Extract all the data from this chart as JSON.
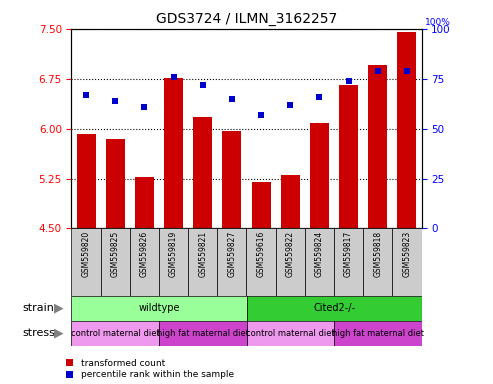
{
  "title": "GDS3724 / ILMN_3162257",
  "samples": [
    "GSM559820",
    "GSM559825",
    "GSM559826",
    "GSM559819",
    "GSM559821",
    "GSM559827",
    "GSM559616",
    "GSM559822",
    "GSM559824",
    "GSM559817",
    "GSM559818",
    "GSM559823"
  ],
  "bar_values": [
    5.92,
    5.85,
    5.28,
    6.76,
    6.18,
    5.97,
    5.2,
    5.3,
    6.08,
    6.65,
    6.95,
    7.45
  ],
  "percentile_values": [
    67,
    64,
    61,
    76,
    72,
    65,
    57,
    62,
    66,
    74,
    79,
    79
  ],
  "ylim_left": [
    4.5,
    7.5
  ],
  "ylim_right": [
    0,
    100
  ],
  "yticks_left": [
    4.5,
    5.25,
    6.0,
    6.75,
    7.5
  ],
  "yticks_right": [
    0,
    25,
    50,
    75,
    100
  ],
  "bar_color": "#cc0000",
  "dot_color": "#0000cc",
  "dot_size": 18,
  "strain_groups": [
    {
      "label": "wildtype",
      "start": 0,
      "end": 6,
      "color": "#99ff99"
    },
    {
      "label": "Cited2-/-",
      "start": 6,
      "end": 12,
      "color": "#33cc33"
    }
  ],
  "stress_groups": [
    {
      "label": "control maternal diet",
      "start": 0,
      "end": 3,
      "color": "#ee99ee"
    },
    {
      "label": "high fat maternal diet",
      "start": 3,
      "end": 6,
      "color": "#cc44cc"
    },
    {
      "label": "control maternal diet",
      "start": 6,
      "end": 9,
      "color": "#ee99ee"
    },
    {
      "label": "high fat maternal diet",
      "start": 9,
      "end": 12,
      "color": "#cc44cc"
    }
  ],
  "legend_items": [
    {
      "label": "transformed count",
      "color": "#cc0000"
    },
    {
      "label": "percentile rank within the sample",
      "color": "#0000cc"
    }
  ],
  "strain_label": "strain",
  "stress_label": "stress",
  "sample_bg_color": "#cccccc",
  "title_fontsize": 10,
  "tick_fontsize": 7.5,
  "sample_fontsize": 5.5,
  "row_label_fontsize": 8,
  "group_fontsize": 7,
  "stress_fontsize": 6
}
